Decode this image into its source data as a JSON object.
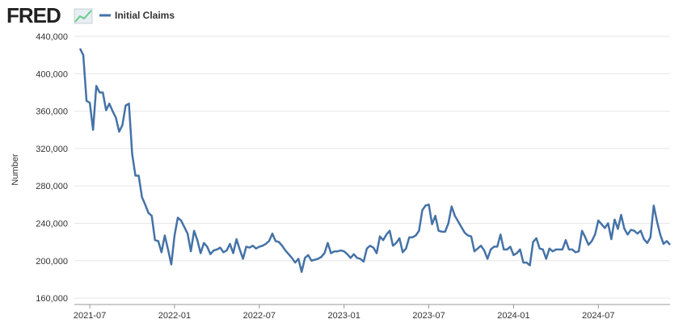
{
  "logo": "FRED",
  "chart_data": {
    "type": "line",
    "y_label": "Number",
    "categories": [
      null,
      null,
      null,
      "2021-07",
      null,
      null,
      null,
      null,
      null,
      null,
      null,
      null,
      null,
      null,
      null,
      null,
      null,
      null,
      null,
      null,
      null,
      null,
      null,
      null,
      null,
      null,
      null,
      null,
      null,
      "2022-01",
      null,
      null,
      null,
      null,
      null,
      null,
      null,
      null,
      null,
      null,
      null,
      null,
      null,
      null,
      null,
      null,
      null,
      null,
      null,
      null,
      null,
      null,
      null,
      null,
      null,
      "2022-07",
      null,
      null,
      null,
      null,
      null,
      null,
      null,
      null,
      null,
      null,
      null,
      null,
      null,
      null,
      null,
      null,
      null,
      null,
      null,
      null,
      null,
      null,
      null,
      null,
      null,
      "2023-01",
      null,
      null,
      null,
      null,
      null,
      null,
      null,
      null,
      null,
      null,
      null,
      null,
      null,
      null,
      null,
      null,
      null,
      null,
      null,
      null,
      null,
      null,
      null,
      null,
      null,
      "2023-07",
      null,
      null,
      null,
      null,
      null,
      null,
      null,
      null,
      null,
      null,
      null,
      null,
      null,
      null,
      null,
      null,
      null,
      null,
      null,
      null,
      null,
      null,
      null,
      null,
      null,
      "2024-01",
      null,
      null,
      null,
      null,
      null,
      null,
      null,
      null,
      null,
      null,
      null,
      null,
      null,
      null,
      null,
      null,
      null,
      null,
      null,
      null,
      null,
      null,
      null,
      null,
      null,
      "2024-07",
      null,
      null,
      null,
      null,
      null,
      null,
      null,
      null,
      null,
      null,
      null,
      null,
      null,
      null,
      null,
      null,
      null,
      null,
      null,
      null,
      null,
      null
    ],
    "series": [
      {
        "name": "Initial Claims",
        "color": "#4572a7",
        "values": [
          427000,
          420000,
          371000,
          369000,
          340000,
          387000,
          380000,
          380000,
          361000,
          368000,
          360000,
          353000,
          338000,
          345000,
          366000,
          368000,
          314000,
          291000,
          291000,
          268000,
          260000,
          251000,
          248000,
          222000,
          221000,
          209000,
          227000,
          212000,
          196000,
          227000,
          246000,
          243000,
          236000,
          229000,
          210000,
          232000,
          222000,
          208000,
          219000,
          215000,
          207000,
          211000,
          212000,
          214000,
          209000,
          211000,
          218000,
          208000,
          223000,
          212000,
          202000,
          215000,
          214000,
          216000,
          213000,
          215000,
          216000,
          218000,
          221000,
          229000,
          221000,
          220000,
          216000,
          211000,
          207000,
          203000,
          198000,
          202000,
          188000,
          203000,
          206000,
          200000,
          201000,
          202000,
          204000,
          208000,
          219000,
          208000,
          210000,
          210000,
          211000,
          210000,
          207000,
          203000,
          207000,
          203000,
          202000,
          199000,
          213000,
          216000,
          214000,
          208000,
          226000,
          222000,
          228000,
          232000,
          216000,
          219000,
          224000,
          209000,
          213000,
          225000,
          225000,
          227000,
          232000,
          254000,
          259000,
          260000,
          239000,
          248000,
          232000,
          231000,
          231000,
          240000,
          258000,
          248000,
          242000,
          236000,
          230000,
          227000,
          226000,
          210000,
          213000,
          216000,
          211000,
          202000,
          212000,
          215000,
          215000,
          228000,
          212000,
          212000,
          215000,
          206000,
          208000,
          212000,
          198000,
          198000,
          195000,
          220000,
          224000,
          213000,
          212000,
          202000,
          213000,
          210000,
          212000,
          212000,
          212000,
          222000,
          212000,
          212000,
          209000,
          210000,
          232000,
          225000,
          217000,
          221000,
          228000,
          243000,
          239000,
          235000,
          240000,
          223000,
          244000,
          234000,
          249000,
          234000,
          228000,
          233000,
          232000,
          229000,
          232000,
          223000,
          219000,
          225000,
          259000,
          242000,
          228000,
          218000,
          221000,
          217000
        ]
      }
    ],
    "ylim": [
      154000,
      440000
    ],
    "yticks": [
      {
        "value": 160000,
        "label": "160,000"
      },
      {
        "value": 200000,
        "label": "200,000"
      },
      {
        "value": 240000,
        "label": "240,000"
      },
      {
        "value": 280000,
        "label": "280,000"
      },
      {
        "value": 320000,
        "label": "320,000"
      },
      {
        "value": 360000,
        "label": "360,000"
      },
      {
        "value": 400000,
        "label": "400,000"
      },
      {
        "value": 440000,
        "label": "440,000"
      }
    ],
    "grid": true
  }
}
